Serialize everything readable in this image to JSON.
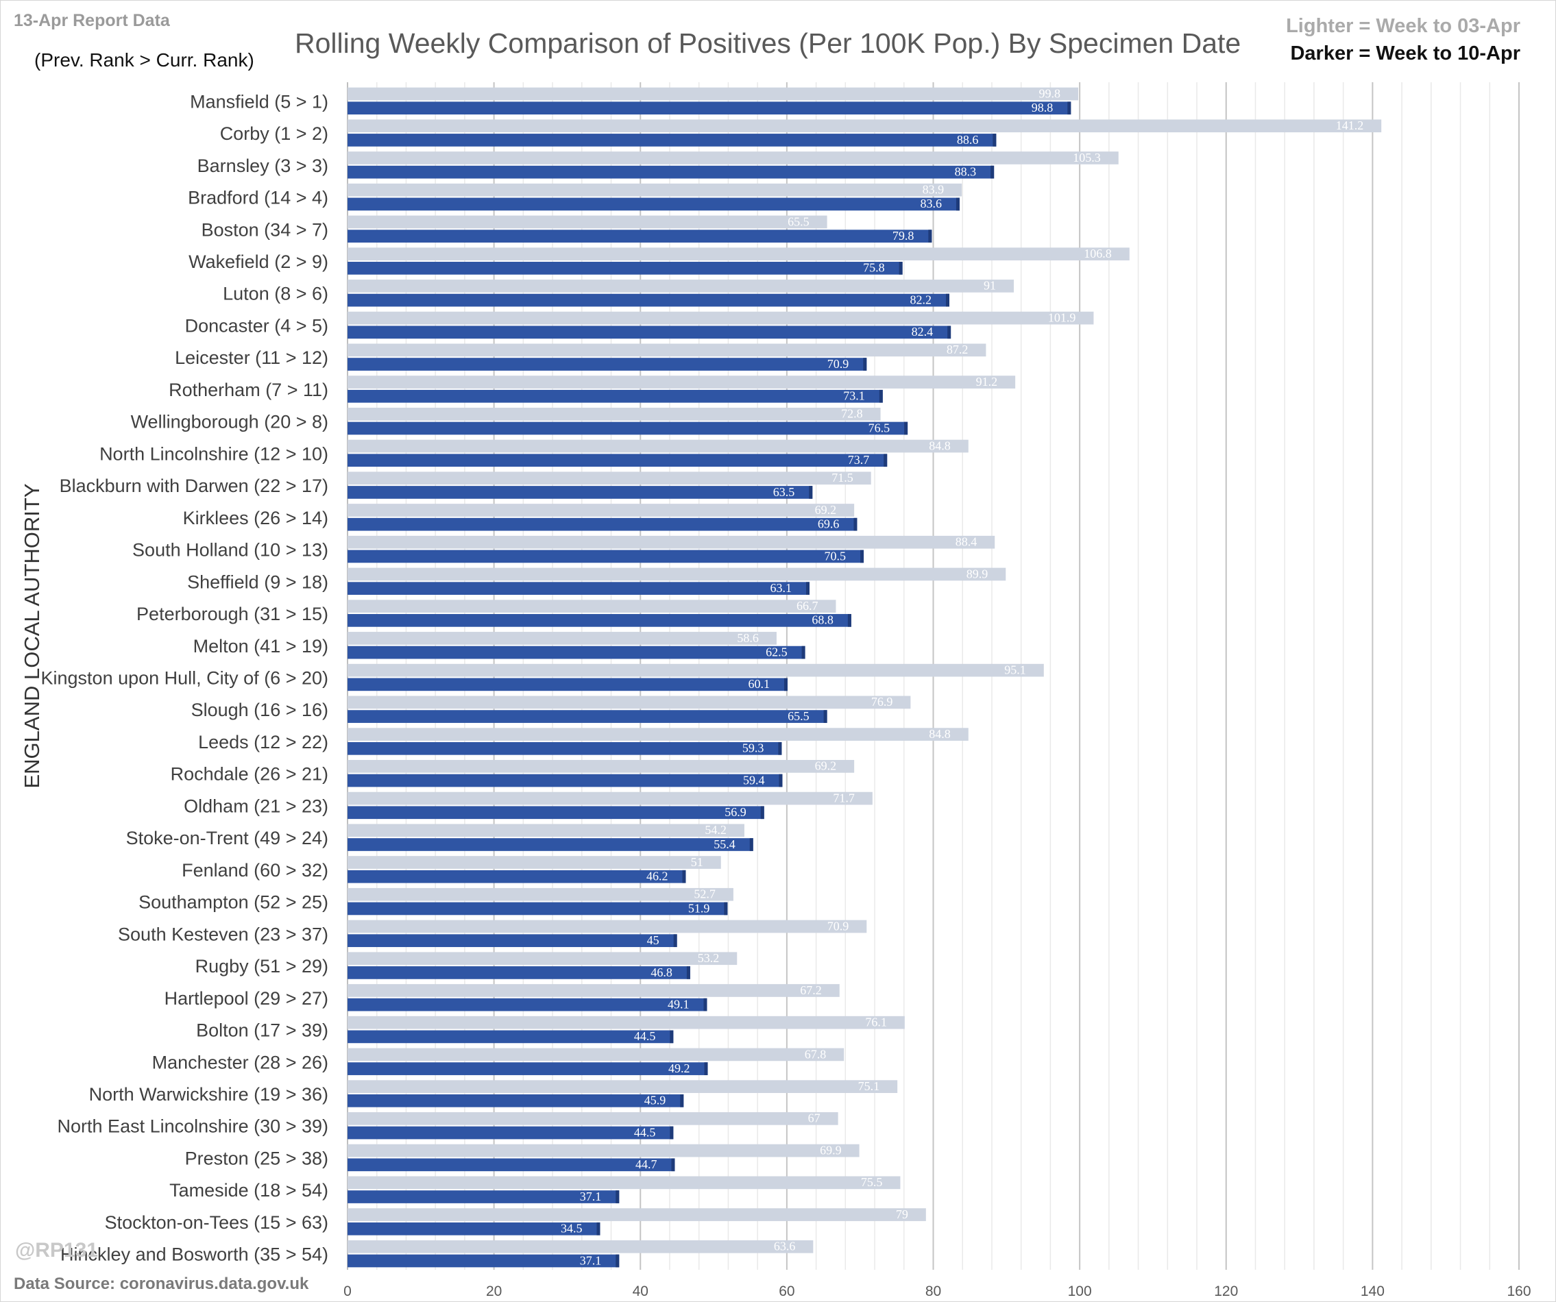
{
  "header": {
    "report_label": "13-Apr Report Data",
    "rank_note": "(Prev. Rank > Curr. Rank)",
    "legend_lighter": "Lighter = Week to 03-Apr",
    "legend_darker": "Darker = Week to 10-Apr"
  },
  "footer": {
    "watermark": "@RP131",
    "data_source": "Data Source: coronavirus.data.gov.uk"
  },
  "colors": {
    "lighter_bar": "#cdd4e0",
    "darker_bar": "#2f55a4",
    "grid": "#d9d9d9"
  },
  "chart_data": {
    "type": "bar",
    "orientation": "horizontal",
    "title": "Rolling Weekly Comparison of Positives  (Per 100K Pop.) By Specimen Date",
    "ylabel": "ENGLAND LOCAL AUTHORITY",
    "xlabel": "",
    "xlim": [
      0,
      160
    ],
    "x_ticks": [
      0,
      20,
      40,
      60,
      80,
      100,
      120,
      140,
      160
    ],
    "grid": true,
    "legend_position": "top-right",
    "categories": [
      "Mansfield (5 > 1)",
      "Corby (1 > 2)",
      "Barnsley (3 > 3)",
      "Bradford (14 > 4)",
      "Boston (34 > 7)",
      "Wakefield (2 > 9)",
      "Luton (8 > 6)",
      "Doncaster (4 > 5)",
      "Leicester (11 > 12)",
      "Rotherham (7 > 11)",
      "Wellingborough (20 > 8)",
      "North Lincolnshire (12 > 10)",
      "Blackburn with Darwen (22 > 17)",
      "Kirklees (26 > 14)",
      "South Holland (10 > 13)",
      "Sheffield (9 > 18)",
      "Peterborough (31 > 15)",
      "Melton (41 > 19)",
      "Kingston upon Hull, City of (6 > 20)",
      "Slough (16 > 16)",
      "Leeds (12 > 22)",
      "Rochdale (26 > 21)",
      "Oldham (21 > 23)",
      "Stoke-on-Trent (49 > 24)",
      "Fenland (60 > 32)",
      "Southampton (52 > 25)",
      "South Kesteven (23 > 37)",
      "Rugby (51 > 29)",
      "Hartlepool (29 > 27)",
      "Bolton (17 > 39)",
      "Manchester (28 > 26)",
      "North Warwickshire (19 > 36)",
      "North East Lincolnshire (30 > 39)",
      "Preston (25 > 38)",
      "Tameside (18 > 54)",
      "Stockton-on-Tees (15 > 63)",
      "Hinckley and Bosworth (35 > 54)"
    ],
    "series": [
      {
        "name": "Week to 03-Apr",
        "values": [
          99.8,
          141.2,
          105.3,
          83.9,
          65.5,
          106.8,
          91,
          101.9,
          87.2,
          91.2,
          72.8,
          84.8,
          71.5,
          69.2,
          88.4,
          89.9,
          66.7,
          58.6,
          95.1,
          76.9,
          84.8,
          69.2,
          71.7,
          54.2,
          51,
          52.7,
          70.9,
          53.2,
          67.2,
          76.1,
          67.8,
          75.1,
          67,
          69.9,
          75.5,
          79,
          63.6
        ]
      },
      {
        "name": "Week to 10-Apr",
        "values": [
          98.8,
          88.6,
          88.3,
          83.6,
          79.8,
          75.8,
          82.2,
          82.4,
          70.9,
          73.1,
          76.5,
          73.7,
          63.5,
          69.6,
          70.5,
          63.1,
          68.8,
          62.5,
          60.1,
          65.5,
          59.3,
          59.4,
          56.9,
          55.4,
          46.2,
          51.9,
          45,
          46.8,
          49.1,
          44.5,
          49.2,
          45.9,
          44.5,
          44.7,
          37.1,
          34.5,
          37.1
        ]
      }
    ]
  }
}
